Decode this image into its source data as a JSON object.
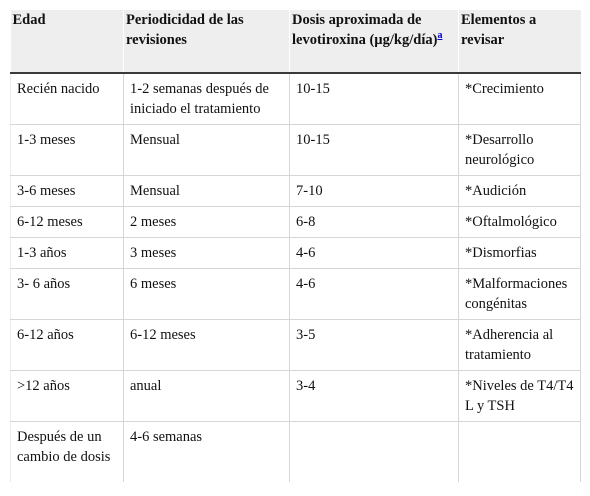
{
  "header": {
    "col1": "Edad",
    "col2": "Periodicidad de las revisiones",
    "col3": "Dosis aproximada de levotiroxina (µg/kg/día)",
    "col3_footnote": "a",
    "col4": "Elementos a revisar"
  },
  "rows": [
    [
      "Recién nacido",
      "1-2 semanas después de iniciado el tratamiento",
      "10-15",
      "*Crecimiento"
    ],
    [
      "1-3 meses",
      "Mensual",
      "10-15",
      "*Desarrollo neurológico"
    ],
    [
      "3-6 meses",
      "Mensual",
      "7-10",
      "*Audición"
    ],
    [
      "6-12 meses",
      "2 meses",
      "6-8",
      "*Oftalmológico"
    ],
    [
      "1-3 años",
      "3 meses",
      "4-6",
      "*Dismorfias"
    ],
    [
      "3- 6 años",
      "6 meses",
      "4-6",
      "*Malformaciones congénitas"
    ],
    [
      "6-12 años",
      "6-12 meses",
      "3-5",
      "*Adherencia al tratamiento"
    ],
    [
      ">12 años",
      "anual",
      "3-4",
      "*Niveles de T4/T4 L y TSH"
    ],
    [
      "Después de un cambio de dosis",
      "4-6 semanas",
      "",
      ""
    ]
  ]
}
